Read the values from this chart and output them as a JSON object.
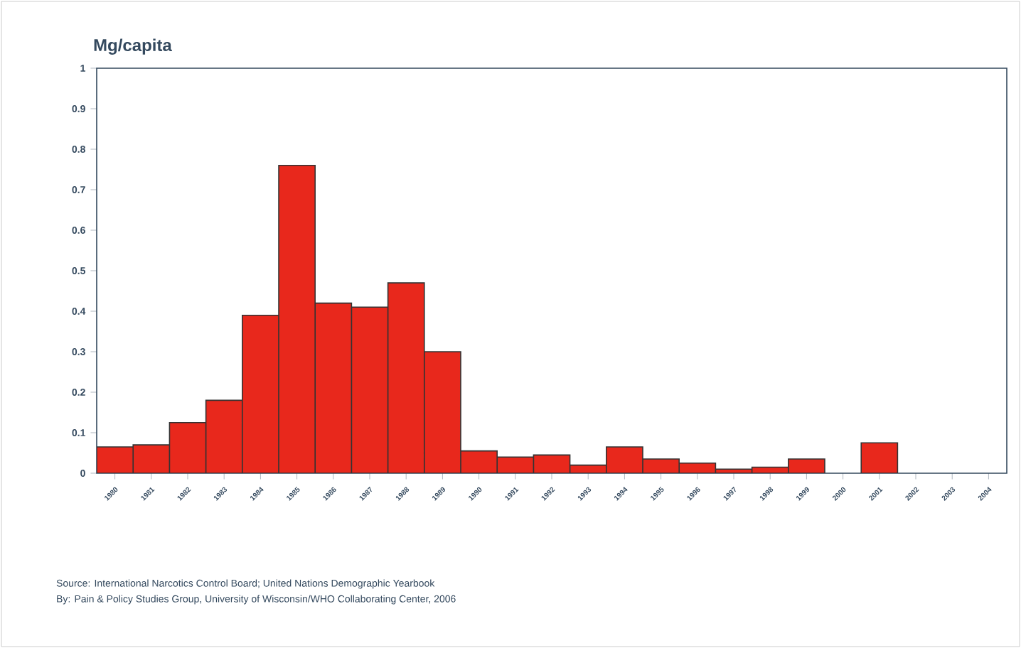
{
  "chart_data": {
    "type": "bar",
    "ylabel": "Mg/capita",
    "categories": [
      "1980",
      "1981",
      "1982",
      "1983",
      "1984",
      "1985",
      "1986",
      "1987",
      "1988",
      "1989",
      "1990",
      "1991",
      "1992",
      "1993",
      "1994",
      "1995",
      "1996",
      "1997",
      "1998",
      "1999",
      "2000",
      "2001",
      "2002",
      "2003",
      "2004"
    ],
    "values": [
      0.065,
      0.07,
      0.125,
      0.18,
      0.39,
      0.76,
      0.42,
      0.41,
      0.47,
      0.3,
      0.055,
      0.04,
      0.045,
      0.02,
      0.065,
      0.035,
      0.025,
      0.01,
      0.015,
      0.035,
      null,
      0.075,
      null,
      null,
      null
    ],
    "color": "#e8281c",
    "ylim": [
      0,
      1
    ],
    "yticks": [
      0,
      0.1,
      0.2,
      0.3,
      0.4,
      0.5,
      0.6,
      0.7,
      0.8,
      0.9,
      1
    ],
    "annotations": [
      "Source: International Narcotics Control Board; United Nations Demographic Yearbook",
      "By: Pain & Policy Studies Group, University of Wisconsin/WHO Collaborating Center,  2006"
    ]
  }
}
